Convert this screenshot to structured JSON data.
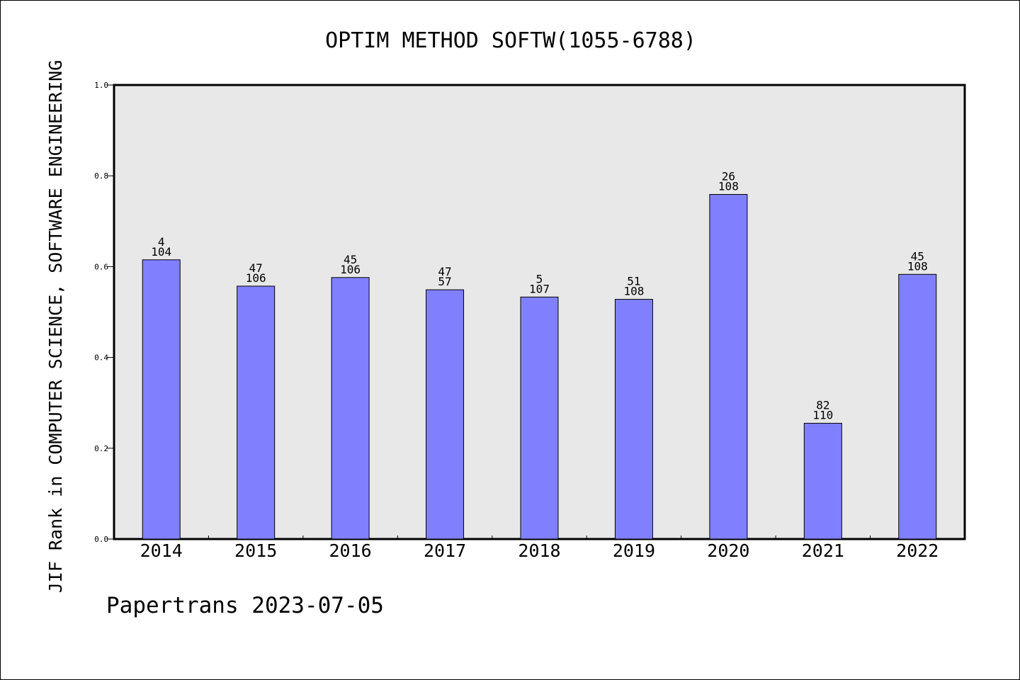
{
  "chart_data": {
    "type": "bar",
    "title": "OPTIM METHOD SOFTW(1055-6788)",
    "ylabel": "JIF Rank in COMPUTER SCIENCE, SOFTWARE ENGINEERING",
    "xlabel": "",
    "categories": [
      "2014",
      "2015",
      "2016",
      "2017",
      "2018",
      "2019",
      "2020",
      "2021",
      "2022"
    ],
    "values": [
      0.615,
      0.557,
      0.576,
      0.549,
      0.533,
      0.528,
      0.759,
      0.255,
      0.583
    ],
    "rank": [
      "4",
      "47",
      "45",
      "47",
      "5",
      "51",
      "26",
      "82",
      "45"
    ],
    "total": [
      "104",
      "106",
      "106",
      "57",
      "107",
      "108",
      "108",
      "110",
      "108"
    ],
    "ylim": [
      0,
      1.0
    ],
    "yticks": [
      "0.0",
      "0.2",
      "0.4",
      "0.6",
      "0.8",
      "1.0"
    ],
    "grid": false,
    "colors": {
      "bar": "#8080ff",
      "plot_background": "#e8e8e8",
      "axis": "#000000"
    }
  },
  "footer": {
    "source": "Papertrans 2023-07-05"
  }
}
